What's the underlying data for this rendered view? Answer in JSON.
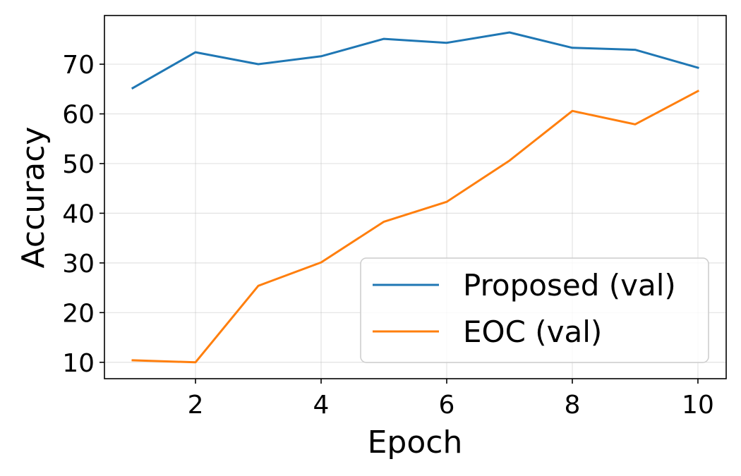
{
  "chart_data": {
    "type": "line",
    "title": "",
    "xlabel": "Epoch",
    "ylabel": "Accuracy",
    "x": [
      1,
      2,
      3,
      4,
      5,
      6,
      7,
      8,
      9,
      10
    ],
    "xlim": [
      0.55,
      10.45
    ],
    "ylim": [
      6.7,
      79.8
    ],
    "xticks": [
      2,
      4,
      6,
      8,
      10
    ],
    "yticks": [
      10,
      20,
      30,
      40,
      50,
      60,
      70
    ],
    "grid": true,
    "legend_position": "lower-right",
    "series": [
      {
        "name": "Proposed (val)",
        "color": "#1f77b4",
        "values": [
          65.2,
          72.4,
          70.0,
          71.6,
          75.1,
          74.3,
          76.4,
          73.3,
          72.9,
          69.3
        ]
      },
      {
        "name": "EOC (val)",
        "color": "#ff7f0e",
        "values": [
          10.4,
          10.0,
          25.4,
          30.1,
          38.3,
          42.3,
          50.6,
          60.6,
          57.9,
          64.6
        ]
      }
    ]
  }
}
